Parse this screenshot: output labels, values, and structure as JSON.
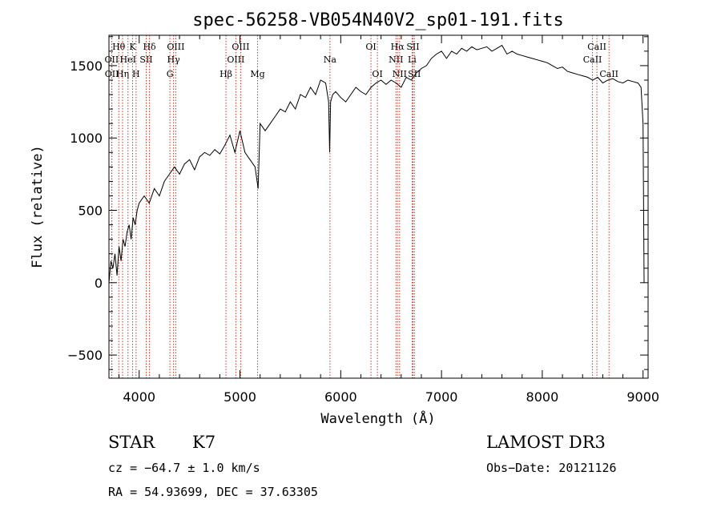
{
  "chart_data": {
    "type": "line",
    "title": "spec-56258-VB054N40V2_sp01-191.fits",
    "xlabel": "Wavelength (Å)",
    "ylabel": "Flux (relative)",
    "xlim": [
      3700,
      9050
    ],
    "ylim": [
      -660,
      1710
    ],
    "xticks": [
      4000,
      5000,
      6000,
      7000,
      8000,
      9000
    ],
    "yticks": [
      -500,
      0,
      500,
      1000,
      1500
    ],
    "xtick_labels": [
      "4000",
      "5000",
      "6000",
      "7000",
      "8000",
      "9000"
    ],
    "ytick_labels": [
      "−500",
      "0",
      "500",
      "1000",
      "1500"
    ],
    "spectrum": {
      "x": [
        3700,
        3720,
        3740,
        3760,
        3780,
        3800,
        3820,
        3840,
        3860,
        3880,
        3900,
        3920,
        3940,
        3960,
        3980,
        4000,
        4050,
        4100,
        4150,
        4200,
        4250,
        4300,
        4350,
        4400,
        4450,
        4500,
        4550,
        4600,
        4650,
        4700,
        4750,
        4800,
        4850,
        4900,
        4950,
        5000,
        5050,
        5100,
        5150,
        5180,
        5200,
        5250,
        5300,
        5350,
        5400,
        5450,
        5500,
        5550,
        5600,
        5650,
        5700,
        5750,
        5800,
        5850,
        5880,
        5890,
        5900,
        5920,
        5950,
        6000,
        6050,
        6100,
        6150,
        6200,
        6250,
        6300,
        6350,
        6400,
        6450,
        6500,
        6550,
        6600,
        6650,
        6700,
        6750,
        6800,
        6850,
        6900,
        6950,
        7000,
        7050,
        7100,
        7150,
        7200,
        7250,
        7300,
        7350,
        7400,
        7450,
        7500,
        7550,
        7600,
        7650,
        7700,
        7750,
        7800,
        7850,
        7900,
        7950,
        8000,
        8050,
        8100,
        8150,
        8200,
        8250,
        8300,
        8350,
        8400,
        8450,
        8500,
        8550,
        8600,
        8650,
        8700,
        8750,
        8800,
        8850,
        8900,
        8950,
        8980,
        9000,
        9010
      ],
      "y": [
        0,
        150,
        100,
        200,
        50,
        250,
        150,
        300,
        250,
        350,
        400,
        300,
        450,
        400,
        500,
        550,
        600,
        550,
        650,
        600,
        700,
        750,
        800,
        750,
        820,
        850,
        780,
        870,
        900,
        880,
        920,
        890,
        950,
        1020,
        900,
        1050,
        900,
        850,
        800,
        650,
        1100,
        1050,
        1100,
        1150,
        1200,
        1180,
        1250,
        1200,
        1300,
        1280,
        1350,
        1300,
        1400,
        1380,
        1250,
        900,
        1250,
        1300,
        1320,
        1280,
        1250,
        1300,
        1350,
        1320,
        1300,
        1350,
        1380,
        1400,
        1370,
        1400,
        1380,
        1350,
        1420,
        1400,
        1450,
        1480,
        1500,
        1550,
        1580,
        1600,
        1550,
        1600,
        1580,
        1620,
        1600,
        1630,
        1610,
        1620,
        1630,
        1600,
        1620,
        1640,
        1580,
        1600,
        1580,
        1570,
        1560,
        1550,
        1540,
        1530,
        1520,
        1500,
        1480,
        1490,
        1460,
        1450,
        1440,
        1430,
        1420,
        1400,
        1420,
        1380,
        1400,
        1410,
        1390,
        1380,
        1400,
        1390,
        1380,
        1350,
        1100,
        0
      ]
    },
    "spectral_lines": [
      {
        "name": "Hθ",
        "x": 3797,
        "row": 1
      },
      {
        "name": "OII",
        "x": 3727,
        "row": 2
      },
      {
        "name": "OII",
        "x": 3729,
        "row": 3
      },
      {
        "name": "Hη",
        "x": 3835,
        "row": 3
      },
      {
        "name": "K",
        "x": 3934,
        "row": 1
      },
      {
        "name": "HeI",
        "x": 3889,
        "row": 2
      },
      {
        "name": "H",
        "x": 3969,
        "row": 3
      },
      {
        "name": "SII",
        "x": 4070,
        "row": 2
      },
      {
        "name": "Hδ",
        "x": 4102,
        "row": 1
      },
      {
        "name": "OIII",
        "x": 4363,
        "row": 1
      },
      {
        "name": "Hγ",
        "x": 4341,
        "row": 2
      },
      {
        "name": "G",
        "x": 4305,
        "row": 3
      },
      {
        "name": "Hβ",
        "x": 4861,
        "row": 3
      },
      {
        "name": "OIII",
        "x": 4959,
        "row": 2
      },
      {
        "name": "OIII",
        "x": 5007,
        "row": 1
      },
      {
        "name": "Mg",
        "x": 5175,
        "row": 3
      },
      {
        "name": "Na",
        "x": 5893,
        "row": 2
      },
      {
        "name": "OI",
        "x": 6300,
        "row": 1
      },
      {
        "name": "OI",
        "x": 6364,
        "row": 3
      },
      {
        "name": "NII",
        "x": 6548,
        "row": 2
      },
      {
        "name": "Hα",
        "x": 6563,
        "row": 1
      },
      {
        "name": "NII",
        "x": 6584,
        "row": 3
      },
      {
        "name": "Li",
        "x": 6708,
        "row": 2
      },
      {
        "name": "SII",
        "x": 6717,
        "row": 1
      },
      {
        "name": "SII",
        "x": 6731,
        "row": 3
      },
      {
        "name": "CaII",
        "x": 8498,
        "row": 2
      },
      {
        "name": "CaII",
        "x": 8542,
        "row": 1
      },
      {
        "name": "CaII",
        "x": 8662,
        "row": 3
      }
    ]
  },
  "info": {
    "object_class": "STAR",
    "subclass": "K7",
    "survey": "LAMOST DR3",
    "redshift": "cz = −64.7 ± 1.0 km/s",
    "obs_date": "Obs−Date: 20121126",
    "coords": "RA =  54.93699, DEC =  37.63305"
  },
  "colors": {
    "spectrum": "#000000",
    "line_marker": "#c0392b",
    "axes": "#000000",
    "background": "#ffffff"
  }
}
